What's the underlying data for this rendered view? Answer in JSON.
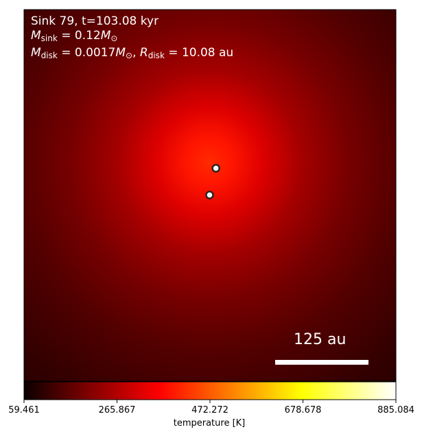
{
  "chart_data": {
    "type": "heatmap",
    "annotation": {
      "line1": "Sink 79, t=103.08 kyr",
      "msink_symbol": "M",
      "msink_sub": "sink",
      "msink_value": "= 0.12",
      "msun_symbol": "M",
      "msun_sub": "⊙",
      "mdisk_symbol": "M",
      "mdisk_sub": "disk",
      "mdisk_value": "= 0.0017",
      "rdisk_symbol": "R",
      "rdisk_sub": "disk",
      "rdisk_value": "= 10.08 au",
      "separator": ","
    },
    "scale_bar_label": "125 au",
    "colorbar": {
      "colormap": "hot",
      "vmin": 59.461,
      "vmax": 885.084,
      "ticks": [
        "59.461",
        "265.867",
        "472.272",
        "678.678",
        "885.084"
      ],
      "label": "temperature [K]"
    },
    "sinks": [
      {
        "x_frac": 0.516,
        "y_frac": 0.427
      },
      {
        "x_frac": 0.499,
        "y_frac": 0.499
      }
    ],
    "peak_temperature_center": {
      "x_frac": 0.5,
      "y_frac": 0.43
    }
  }
}
